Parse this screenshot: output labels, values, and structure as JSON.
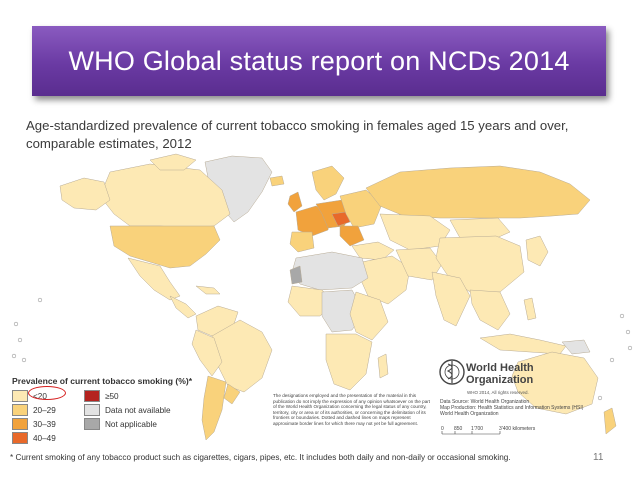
{
  "slide": {
    "title": "WHO Global status report on NCDs 2014",
    "page_number": "11"
  },
  "map": {
    "heading": "Age-standardized prevalence of current tobacco smoking in females aged 15 years and over, comparable estimates, 2012",
    "colors": {
      "lt20": "#fde9b4",
      "r20_29": "#f9d27b",
      "r30_39": "#f1a23c",
      "r40_49": "#e8692a",
      "ge50": "#b4231f",
      "not_available": "#e3e3e3",
      "not_applicable": "#a8a8a8",
      "water": "#ffffff",
      "border": "#b8ab95"
    }
  },
  "legend": {
    "title": "Prevalence of current tobacco smoking (%)*",
    "items": [
      {
        "label": "<20"
      },
      {
        "label": "20–29"
      },
      {
        "label": "30–39"
      },
      {
        "label": "40–49"
      },
      {
        "label": "≥50"
      },
      {
        "label": "Data not available"
      },
      {
        "label": "Not applicable"
      }
    ]
  },
  "disclaimer": "The designations employed and the presentation of the material in this publication do not imply the expression of any opinion whatsoever on the part of the World Health Organization concerning the legal status of any country, territory, city or area or of its authorities, or concerning the delimitation of its frontiers or boundaries. Dotted and dashed lines on maps represent approximate border lines for which there may not yet be full agreement.",
  "who": {
    "line1": "World Health",
    "line2": "Organization",
    "rights": "WHO 2014, All rights reserved.",
    "source_lines": [
      "Data Source: World Health Organization",
      "Map Production: Health Statistics and Information Systems (HSI)",
      "World Health Organization"
    ],
    "scale_ticks": [
      "0",
      "850",
      "1'700",
      "3'400 kilometers"
    ]
  },
  "footnote": "* Current smoking of any tobacco product such as cigarettes, cigars, pipes, etc. It includes both daily and non-daily or occasional smoking."
}
